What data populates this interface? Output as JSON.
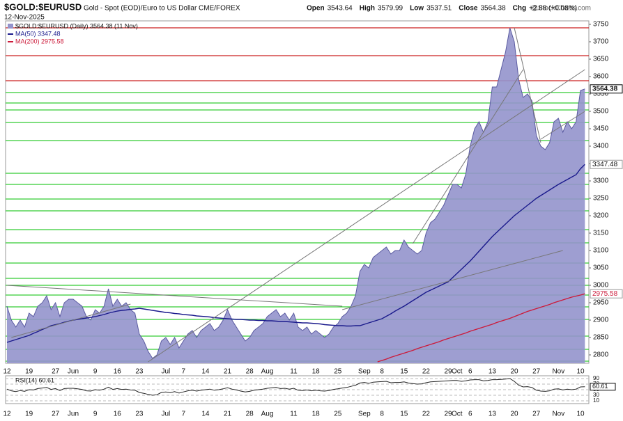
{
  "header": {
    "symbol": "$GOLD:$EURUSD",
    "description": "Gold - Spot (EOD)/Euro to US Dollar  CME/FOREX",
    "date": "12-Nov-2025",
    "credit": "@StockCharts.com",
    "stats": [
      {
        "label": "Open",
        "value": 3543.64
      },
      {
        "label": "High",
        "value": 3579.99
      },
      {
        "label": "Low",
        "value": 3537.51
      },
      {
        "label": "Close",
        "value": 3564.38
      },
      {
        "label": "Chg",
        "value": "+2.88 (+0.08%)"
      }
    ]
  },
  "chart_data": {
    "type": "area",
    "categories": [
      "12",
      null,
      null,
      null,
      null,
      "19",
      null,
      null,
      null,
      null,
      null,
      "27",
      null,
      null,
      null,
      "Jun",
      null,
      null,
      null,
      null,
      "9",
      null,
      null,
      null,
      null,
      "16",
      null,
      null,
      null,
      null,
      "23",
      null,
      null,
      null,
      null,
      null,
      "Jul",
      null,
      null,
      null,
      "7",
      null,
      null,
      null,
      null,
      "14",
      null,
      null,
      null,
      null,
      "21",
      null,
      null,
      null,
      null,
      "28",
      null,
      null,
      null,
      "Aug",
      null,
      null,
      null,
      null,
      null,
      "11",
      null,
      null,
      null,
      null,
      "18",
      null,
      null,
      null,
      null,
      "25",
      null,
      null,
      null,
      null,
      null,
      "Sep",
      null,
      null,
      null,
      "8",
      null,
      null,
      null,
      null,
      "15",
      null,
      null,
      null,
      null,
      "22",
      null,
      null,
      null,
      null,
      "29",
      null,
      "Oct",
      null,
      null,
      "6",
      null,
      null,
      null,
      null,
      "13",
      null,
      null,
      null,
      null,
      "20",
      null,
      null,
      null,
      null,
      "27",
      null,
      null,
      null,
      null,
      "Nov",
      null,
      null,
      null,
      null,
      "10",
      null
    ],
    "series": [
      {
        "name": "$GOLD:$EURUSD (Daily) 3564.38 (11 Nov)",
        "type": "area",
        "color": "#9494cc",
        "values": [
          2940,
          2900,
          2880,
          2900,
          2880,
          2920,
          2910,
          2940,
          2950,
          2970,
          2930,
          2950,
          2910,
          2950,
          2960,
          2960,
          2950,
          2940,
          2910,
          2900,
          2930,
          2920,
          2940,
          2990,
          2940,
          2960,
          2940,
          2950,
          2930,
          2920,
          2860,
          2840,
          2810,
          2790,
          2800,
          2840,
          2850,
          2830,
          2850,
          2820,
          2840,
          2860,
          2870,
          2850,
          2870,
          2880,
          2890,
          2870,
          2880,
          2900,
          2930,
          2900,
          2880,
          2860,
          2840,
          2850,
          2870,
          2880,
          2890,
          2910,
          2920,
          2930,
          2910,
          2920,
          2900,
          2920,
          2880,
          2870,
          2880,
          2860,
          2870,
          2860,
          2850,
          2860,
          2880,
          2890,
          2910,
          2920,
          2940,
          2970,
          3040,
          3060,
          3050,
          3080,
          3090,
          3100,
          3110,
          3090,
          3100,
          3100,
          3130,
          3110,
          3100,
          3090,
          3100,
          3150,
          3180,
          3190,
          3210,
          3230,
          3260,
          3290,
          3290,
          3280,
          3320,
          3400,
          3450,
          3470,
          3440,
          3470,
          3570,
          3570,
          3620,
          3670,
          3740,
          3700,
          3590,
          3540,
          3550,
          3530,
          3430,
          3400,
          3390,
          3410,
          3470,
          3480,
          3440,
          3470,
          3450,
          3470,
          3560,
          3564.38
        ]
      },
      {
        "name": "MA(50) 3347.48",
        "type": "line",
        "color": "#1a1a8c",
        "values": [
          2836,
          2840,
          2844,
          2848,
          2852,
          2856,
          2862,
          2867,
          2873,
          2878,
          2884,
          2887,
          2890,
          2894,
          2897,
          2900,
          2902,
          2904,
          2906,
          2908,
          2910,
          2913,
          2916,
          2920,
          2923,
          2926,
          2928,
          2929,
          2931,
          2932,
          2934,
          2932,
          2930,
          2928,
          2926,
          2924,
          2922,
          2921,
          2919,
          2918,
          2916,
          2915,
          2914,
          2912,
          2911,
          2910,
          2909,
          2907,
          2906,
          2905,
          2904,
          2903,
          2902,
          2902,
          2901,
          2900,
          2900,
          2899,
          2899,
          2898,
          2898,
          2897,
          2896,
          2896,
          2895,
          2894,
          2893,
          2892,
          2892,
          2891,
          2890,
          2889,
          2887,
          2886,
          2885,
          2884,
          2884,
          2883,
          2883,
          2884,
          2884,
          2888,
          2892,
          2896,
          2900,
          2904,
          2911,
          2918,
          2926,
          2933,
          2940,
          2948,
          2956,
          2964,
          2972,
          2980,
          2986,
          2992,
          2998,
          3004,
          3010,
          3022,
          3034,
          3046,
          3058,
          3070,
          3084,
          3098,
          3112,
          3126,
          3140,
          3152,
          3164,
          3176,
          3188,
          3200,
          3210,
          3220,
          3230,
          3240,
          3250,
          3258,
          3266,
          3274,
          3282,
          3290,
          3297,
          3304,
          3311,
          3318,
          3335,
          3347.48
        ]
      },
      {
        "name": "MA(200) 2975.58",
        "type": "line",
        "color": "#cc1a3a",
        "values": [
          null,
          null,
          null,
          null,
          null,
          null,
          null,
          null,
          null,
          null,
          null,
          null,
          null,
          null,
          null,
          null,
          null,
          null,
          null,
          null,
          null,
          null,
          null,
          null,
          null,
          null,
          null,
          null,
          null,
          null,
          null,
          null,
          null,
          null,
          null,
          null,
          null,
          null,
          null,
          null,
          null,
          null,
          null,
          null,
          null,
          null,
          null,
          null,
          null,
          null,
          null,
          null,
          null,
          null,
          null,
          null,
          null,
          null,
          null,
          null,
          null,
          null,
          null,
          null,
          null,
          null,
          null,
          null,
          null,
          null,
          null,
          null,
          null,
          null,
          null,
          null,
          null,
          null,
          null,
          null,
          null,
          null,
          null,
          null,
          2780,
          2784,
          2788,
          2793,
          2797,
          2801,
          2805,
          2809,
          2813,
          2818,
          2822,
          2826,
          2830,
          2834,
          2838,
          2843,
          2847,
          2851,
          2855,
          2859,
          2863,
          2868,
          2872,
          2876,
          2880,
          2884,
          2888,
          2893,
          2897,
          2901,
          2905,
          2910,
          2915,
          2920,
          2925,
          2929,
          2933,
          2937,
          2941,
          2945,
          2950,
          2954,
          2958,
          2962,
          2966,
          2969,
          2972,
          2975.58
        ]
      }
    ],
    "ylim": [
      2776,
      3760
    ],
    "yticks": [
      2800,
      2850,
      2900,
      2950,
      3000,
      3050,
      3100,
      3150,
      3200,
      3250,
      3300,
      3350,
      3400,
      3450,
      3500,
      3550,
      3600,
      3650,
      3700,
      3750
    ],
    "levels": [
      {
        "value": 3740,
        "color": "#cc2222"
      },
      {
        "value": 3660,
        "color": "#cc2222"
      },
      {
        "value": 3588,
        "color": "#cc2222"
      },
      {
        "value": 3554,
        "color": "#33cc33"
      },
      {
        "value": 3524,
        "color": "#33cc33"
      },
      {
        "value": 3504,
        "color": "#33cc33"
      },
      {
        "value": 3468,
        "color": "#33cc33"
      },
      {
        "value": 3416,
        "color": "#33cc33"
      },
      {
        "value": 3322,
        "color": "#33cc33"
      },
      {
        "value": 3290,
        "color": "#33cc33"
      },
      {
        "value": 3248,
        "color": "#33cc33"
      },
      {
        "value": 3214,
        "color": "#33cc33"
      },
      {
        "value": 3160,
        "color": "#33cc33"
      },
      {
        "value": 3122,
        "color": "#33cc33"
      },
      {
        "value": 3064,
        "color": "#33cc33"
      },
      {
        "value": 3020,
        "color": "#33cc33"
      },
      {
        "value": 3000,
        "color": "#33cc33"
      },
      {
        "value": 2972,
        "color": "#33cc33"
      },
      {
        "value": 2938,
        "color": "#33cc33"
      },
      {
        "value": 2902,
        "color": "#33cc33"
      },
      {
        "value": 2854,
        "color": "#33cc33"
      },
      {
        "value": 2816,
        "color": "#33cc33"
      },
      {
        "value": 2782,
        "color": "#33cc33"
      }
    ],
    "trendlines": [
      {
        "points": [
          [
            0,
            3000
          ],
          [
            76,
            2940
          ]
        ]
      },
      {
        "points": [
          [
            32,
            2780
          ],
          [
            131,
            3620
          ]
        ]
      },
      {
        "points": [
          [
            92,
            3120
          ],
          [
            117,
            3620
          ]
        ]
      },
      {
        "points": [
          [
            76,
            2930
          ],
          [
            126,
            3100
          ]
        ]
      },
      {
        "points": [
          [
            1,
            2850
          ],
          [
            28,
            2946
          ]
        ]
      },
      {
        "points": [
          [
            115,
            3740
          ],
          [
            121,
            3410
          ]
        ]
      },
      {
        "points": [
          [
            121,
            3420
          ],
          [
            131,
            3500
          ]
        ]
      }
    ],
    "rsi": {
      "name": "RSI(14) 60.61",
      "color": "#222222",
      "ylim": [
        0,
        100
      ],
      "yticks": [
        10,
        30,
        50,
        70,
        90
      ],
      "values": [
        52,
        46,
        43,
        47,
        44,
        50,
        49,
        54,
        56,
        58,
        51,
        54,
        47,
        54,
        55,
        55,
        53,
        51,
        46,
        45,
        50,
        48,
        52,
        59,
        51,
        54,
        51,
        52,
        49,
        48,
        40,
        37,
        33,
        30,
        32,
        40,
        42,
        39,
        43,
        38,
        42,
        46,
        48,
        45,
        48,
        50,
        52,
        48,
        50,
        53,
        57,
        52,
        49,
        45,
        42,
        44,
        48,
        50,
        52,
        55,
        57,
        58,
        54,
        55,
        52,
        55,
        48,
        47,
        49,
        46,
        48,
        46,
        45,
        47,
        51,
        53,
        56,
        58,
        62,
        66,
        74,
        76,
        73,
        77,
        78,
        79,
        80,
        75,
        76,
        76,
        78,
        74,
        72,
        70,
        71,
        75,
        78,
        79,
        80,
        81,
        82,
        83,
        83,
        80,
        82,
        85,
        86,
        86,
        82,
        83,
        86,
        86,
        87,
        88,
        90,
        80,
        66,
        60,
        61,
        58,
        48,
        45,
        44,
        46,
        52,
        53,
        49,
        52,
        50,
        52,
        60,
        60.61
      ]
    }
  }
}
